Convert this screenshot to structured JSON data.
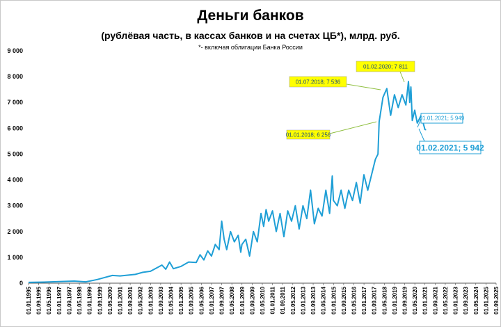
{
  "chart_data": {
    "type": "line",
    "title": "Деньги банков",
    "subtitle": "(рублёвая часть, в кассах банков и на счетах ЦБ*), млрд. руб.",
    "note": "*- включая облигации Банка России",
    "ylim": [
      0,
      9000
    ],
    "yticks": [
      "0",
      "1 000",
      "2 000",
      "3 000",
      "4 000",
      "5 000",
      "6 000",
      "7 000",
      "8 000",
      "9 000"
    ],
    "xlim": [
      1995.0,
      2025.67
    ],
    "xticks": [
      "01.01.1995",
      "01.09.1995",
      "01.05.1996",
      "01.01.1997",
      "01.09.1997",
      "01.05.1998",
      "01.01.1999",
      "01.09.1999",
      "01.05.2000",
      "01.01.2001",
      "01.09.2001",
      "01.05.2002",
      "01.01.2003",
      "01.09.2003",
      "01.05.2004",
      "01.01.2005",
      "01.09.2005",
      "01.05.2006",
      "01.01.2007",
      "01.09.2007",
      "01.05.2008",
      "01.01.2009",
      "01.09.2009",
      "01.05.2010",
      "01.01.2011",
      "01.09.2011",
      "01.05.2012",
      "01.01.2013",
      "01.09.2013",
      "01.05.2014",
      "01.01.2015",
      "01.09.2015",
      "01.05.2016",
      "01.01.2017",
      "01.09.2017",
      "01.05.2018",
      "01.01.2019",
      "01.09.2019",
      "01.05.2020",
      "01.01.2021",
      "01.09.2021",
      "01.05.2022",
      "01.01.2023",
      "01.09.2023",
      "01.05.2024",
      "01.01.2025",
      "01.09.2025"
    ],
    "grid": false,
    "color": "#1f9fd6",
    "series": [
      {
        "x": [
          1995.0,
          1996.0,
          1997.0,
          1998.0,
          1998.75,
          1999.5,
          2000.0,
          2000.5,
          2001.0,
          2001.5,
          2002.0,
          2002.5,
          2003.0,
          2003.5,
          2003.75,
          2004.0,
          2004.25,
          2004.5,
          2005.0,
          2005.5,
          2006.0,
          2006.25,
          2006.5,
          2006.75,
          2007.0,
          2007.25,
          2007.5,
          2007.67,
          2007.83,
          2008.0,
          2008.25,
          2008.5,
          2008.75,
          2008.92,
          2009.0,
          2009.25,
          2009.5,
          2009.75,
          2010.0,
          2010.25,
          2010.42,
          2010.58,
          2010.75,
          2011.0,
          2011.25,
          2011.5,
          2011.75,
          2012.0,
          2012.25,
          2012.5,
          2012.75,
          2013.0,
          2013.25,
          2013.5,
          2013.75,
          2014.0,
          2014.25,
          2014.5,
          2014.75,
          2014.92,
          2015.0,
          2015.25,
          2015.5,
          2015.75,
          2016.0,
          2016.25,
          2016.5,
          2016.75,
          2017.0,
          2017.25,
          2017.5,
          2017.75,
          2017.92,
          2018.0,
          2018.25,
          2018.5,
          2018.75,
          2019.0,
          2019.25,
          2019.5,
          2019.75,
          2019.92,
          2020.0,
          2020.08,
          2020.17,
          2020.33,
          2020.5,
          2020.75,
          2021.0,
          2021.08
        ],
        "y": [
          30,
          40,
          60,
          80,
          50,
          140,
          220,
          300,
          280,
          310,
          340,
          420,
          460,
          620,
          700,
          540,
          820,
          560,
          650,
          820,
          800,
          1100,
          900,
          1250,
          1050,
          1500,
          1300,
          2400,
          1700,
          1300,
          2000,
          1600,
          1850,
          1200,
          1500,
          1700,
          1050,
          2000,
          1600,
          2700,
          2200,
          2850,
          2400,
          2800,
          2000,
          2700,
          1800,
          2800,
          2400,
          3000,
          2100,
          3000,
          2500,
          3600,
          2300,
          2900,
          2600,
          3600,
          2700,
          4150,
          3200,
          3000,
          3600,
          2900,
          3600,
          3200,
          3900,
          3100,
          4200,
          3600,
          4200,
          4800,
          5000,
          6256,
          7200,
          7536,
          6500,
          7300,
          6800,
          7300,
          6900,
          7811,
          7000,
          7600,
          6300,
          6700,
          6200,
          6500,
          5949,
          5942
        ]
      }
    ],
    "annotations": [
      {
        "label": "01.01.2018;  6 256",
        "style": "yellow"
      },
      {
        "label": "01.07.2018;  7 536",
        "style": "yellow"
      },
      {
        "label": "01.02.2020;  7 811",
        "style": "yellow"
      },
      {
        "label": "01.01.2021;  5 949",
        "style": "blue"
      },
      {
        "label": "01.02.2021;  5 942",
        "style": "big"
      }
    ]
  }
}
